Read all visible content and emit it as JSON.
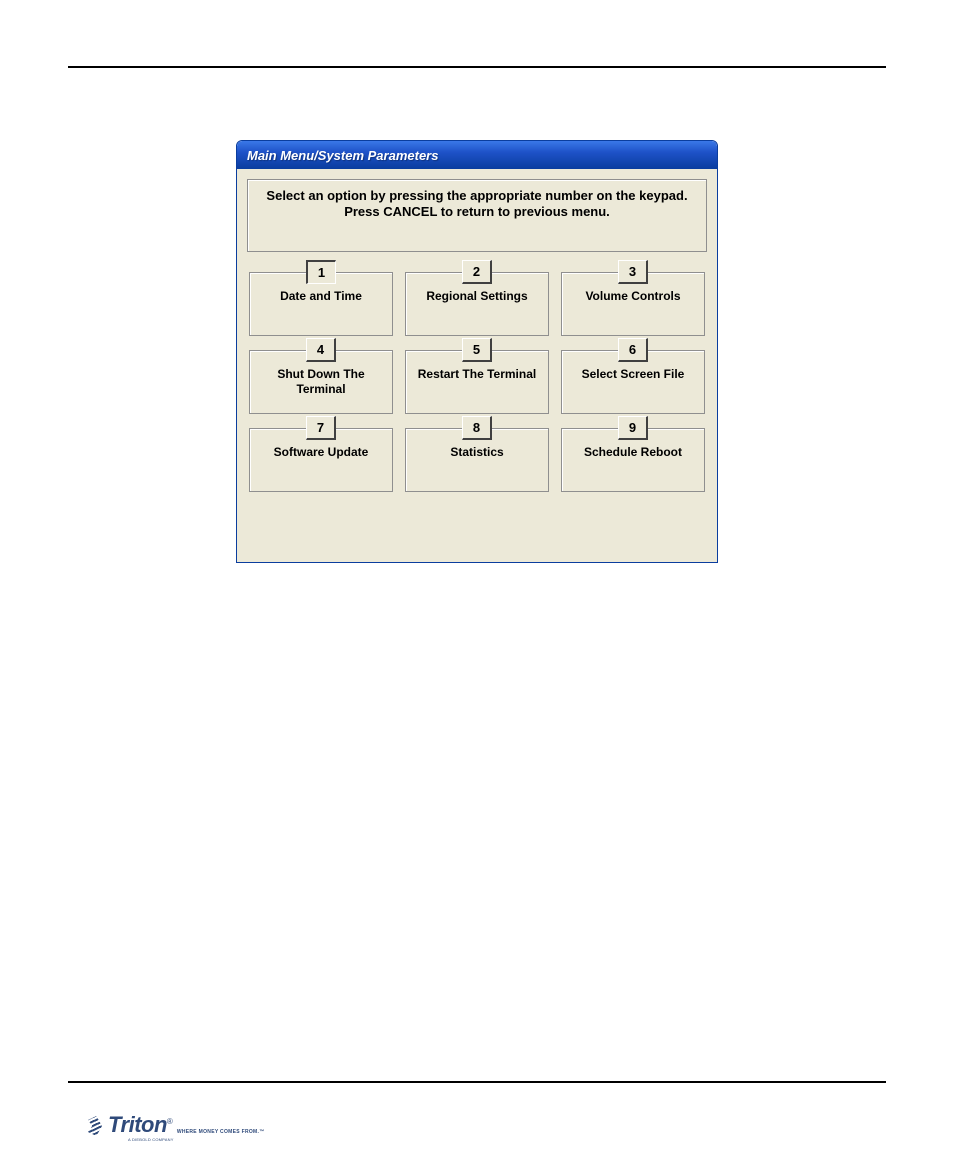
{
  "colors": {
    "page_bg": "#ffffff",
    "rule": "#000000",
    "titlebar_gradient_top": "#3a78e8",
    "titlebar_gradient_mid": "#1e52c8",
    "titlebar_gradient_bottom": "#0a3d9e",
    "titlebar_text": "#ffffff",
    "client_bg": "#ece9d8",
    "box_border": "#8f8f8f",
    "btn_light": "#ffffff",
    "btn_dark": "#404040",
    "text": "#000000",
    "logo": "#2f4a7a"
  },
  "window": {
    "title": "Main Menu/System Parameters",
    "instruction_line1": "Select an option by pressing the appropriate number on the keypad.",
    "instruction_line2": "Press CANCEL to return to previous menu.",
    "active_option": 1,
    "options": [
      {
        "num": "1",
        "label": "Date and Time"
      },
      {
        "num": "2",
        "label": "Regional Settings"
      },
      {
        "num": "3",
        "label": "Volume Controls"
      },
      {
        "num": "4",
        "label": "Shut Down The Terminal"
      },
      {
        "num": "5",
        "label": "Restart The Terminal"
      },
      {
        "num": "6",
        "label": "Select Screen File"
      },
      {
        "num": "7",
        "label": "Software Update"
      },
      {
        "num": "8",
        "label": "Statistics"
      },
      {
        "num": "9",
        "label": "Schedule Reboot"
      }
    ]
  },
  "logo": {
    "name": "Triton",
    "reg": "®",
    "tagline": "WHERE MONEY COMES FROM.™",
    "subline": "A DIEBOLD COMPANY"
  }
}
